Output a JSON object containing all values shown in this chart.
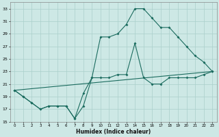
{
  "xlabel": "Humidex (Indice chaleur)",
  "bg_color": "#cde8e5",
  "line_color": "#1a6b5e",
  "grid_color": "#aacfcb",
  "xlim": [
    -0.5,
    23.5
  ],
  "ylim": [
    15,
    34
  ],
  "yticks": [
    15,
    17,
    19,
    21,
    23,
    25,
    27,
    29,
    31,
    33
  ],
  "xticks": [
    0,
    1,
    2,
    3,
    4,
    5,
    6,
    7,
    8,
    9,
    10,
    11,
    12,
    13,
    14,
    15,
    16,
    17,
    18,
    19,
    20,
    21,
    22,
    23
  ],
  "line1_x": [
    0,
    1,
    2,
    3,
    4,
    5,
    6,
    7,
    8,
    9,
    10,
    11,
    12,
    13,
    14,
    15,
    16,
    17,
    18,
    19,
    20,
    21,
    22,
    23
  ],
  "line1_y": [
    20.0,
    19.0,
    18.0,
    17.0,
    17.5,
    17.5,
    17.5,
    15.5,
    17.5,
    22.0,
    28.5,
    28.5,
    29.0,
    30.5,
    33.0,
    33.0,
    31.5,
    30.0,
    30.0,
    28.5,
    27.0,
    25.5,
    24.5,
    23.0
  ],
  "line2_x": [
    0,
    1,
    2,
    3,
    4,
    5,
    6,
    7,
    8,
    9,
    10,
    11,
    12,
    13,
    14,
    15,
    16,
    17,
    18,
    19,
    20,
    21,
    22,
    23
  ],
  "line2_y": [
    20.0,
    19.0,
    18.0,
    17.0,
    17.5,
    17.5,
    17.5,
    15.5,
    19.5,
    22.0,
    22.0,
    22.0,
    22.5,
    22.5,
    27.5,
    22.0,
    21.0,
    21.0,
    22.0,
    22.0,
    22.0,
    22.0,
    22.5,
    23.0
  ],
  "line3_x": [
    0,
    23
  ],
  "line3_y": [
    20.0,
    23.0
  ]
}
